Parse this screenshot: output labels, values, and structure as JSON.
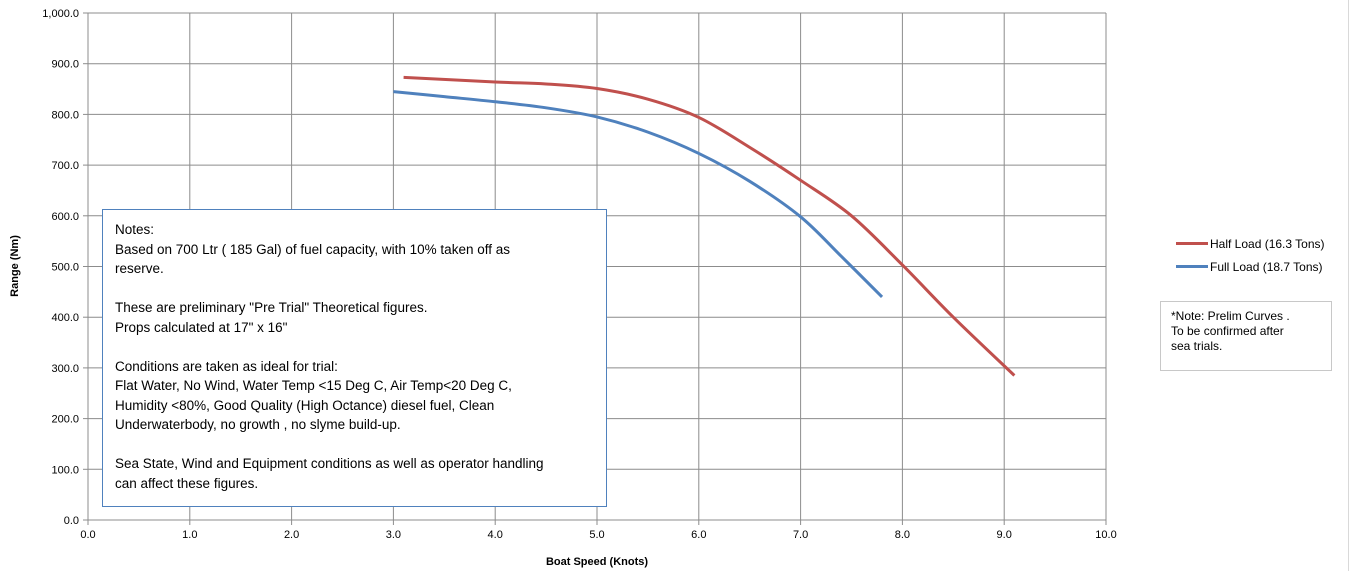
{
  "chart_data": {
    "type": "line",
    "title": "",
    "xlabel": "Boat Speed (Knots)",
    "ylabel": "Range (Nm)",
    "xlim": [
      0,
      10
    ],
    "ylim": [
      0,
      1000
    ],
    "x_ticks": [
      "0.0",
      "1.0",
      "2.0",
      "3.0",
      "4.0",
      "5.0",
      "6.0",
      "7.0",
      "8.0",
      "9.0",
      "10.0"
    ],
    "y_ticks": [
      "0.0",
      "100.0",
      "200.0",
      "300.0",
      "400.0",
      "500.0",
      "600.0",
      "700.0",
      "800.0",
      "900.0",
      "1,000.0"
    ],
    "grid": true,
    "legend_position": "right",
    "series": [
      {
        "name": "Half Load (16.3 Tons)",
        "color": "#c0504d",
        "points": [
          [
            3.1,
            873
          ],
          [
            4.0,
            864
          ],
          [
            4.5,
            860
          ],
          [
            5.0,
            851
          ],
          [
            5.5,
            830
          ],
          [
            6.0,
            794
          ],
          [
            6.5,
            735
          ],
          [
            7.0,
            670
          ],
          [
            7.5,
            600
          ],
          [
            8.0,
            503
          ],
          [
            8.5,
            400
          ],
          [
            9.1,
            285
          ]
        ]
      },
      {
        "name": "Full Load (18.7 Tons)",
        "color": "#4f81bd",
        "points": [
          [
            3.0,
            845
          ],
          [
            3.5,
            835
          ],
          [
            4.0,
            825
          ],
          [
            4.5,
            813
          ],
          [
            5.0,
            795
          ],
          [
            5.5,
            765
          ],
          [
            6.0,
            723
          ],
          [
            6.5,
            668
          ],
          [
            7.0,
            598
          ],
          [
            7.4,
            520
          ],
          [
            7.8,
            440
          ]
        ]
      }
    ]
  },
  "notes": {
    "title": "Notes:",
    "line1": "Based on 700 Ltr ( 185 Gal) of fuel capacity, with 10%  taken off as",
    "line2": "reserve.",
    "line3": "These are preliminary  \"Pre  Trial\" Theoretical  figures.",
    "line4": "Props  calculated at  17\" x  16\"",
    "line5": "Conditions are taken as ideal for trial:",
    "line6": "Flat Water, No Wind,  Water Temp <15 Deg C, Air Temp<20 Deg C,",
    "line7": "Humidity <80%, Good Quality (High Octance) diesel fuel, Clean",
    "line8": "Underwaterbody, no growth , no slyme build-up.",
    "line9": "Sea State, Wind and Equipment conditions  as well as operator handling",
    "line10": "can affect these figures."
  },
  "prelim": {
    "line1": "*Note: Prelim Curves .",
    "line2": "To be confirmed after",
    "line3": "sea trials."
  }
}
